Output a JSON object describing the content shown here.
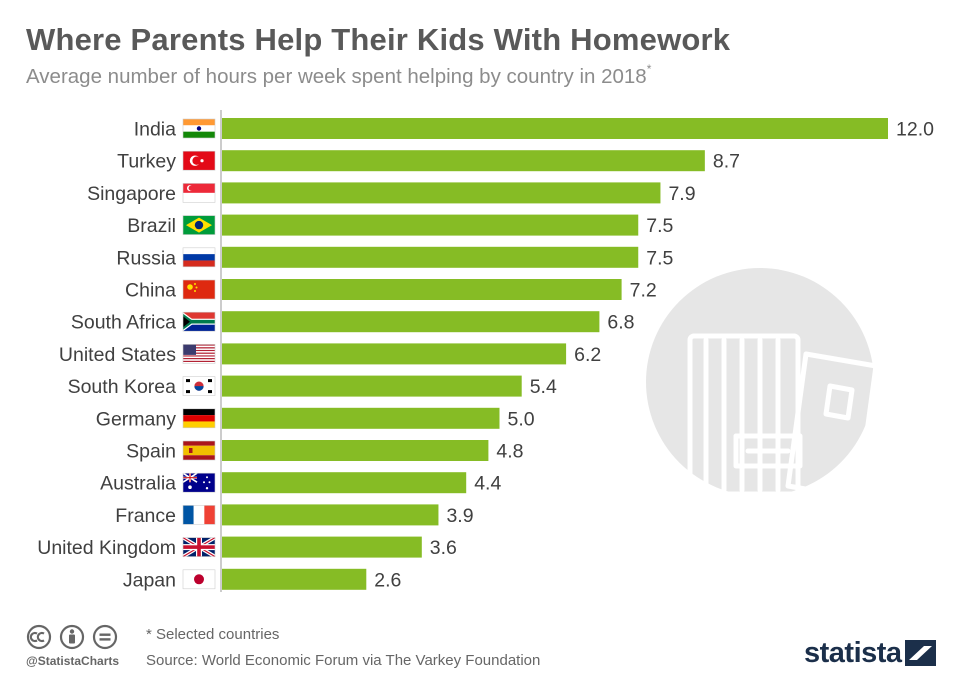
{
  "title": "Where Parents Help Their Kids With Homework",
  "subtitle": "Average number of hours per week spent helping by country in 2018",
  "subtitle_marker": "*",
  "footnote": "* Selected countries",
  "source": "Source: World Economic Forum via The Varkey Foundation",
  "handle": "@StatistaCharts",
  "brand": "statista",
  "colors": {
    "bar": "#86bc25",
    "text": "#404040",
    "title": "#595959",
    "brand": "#1b2f4a",
    "background_circle": "#e6e6e6"
  },
  "icons": [
    "creative-commons-icon",
    "attribution-icon",
    "no-derivatives-icon",
    "homework-books-icon",
    "statista-logo-icon"
  ],
  "chart_data": {
    "type": "bar",
    "orientation": "horizontal",
    "categories": [
      "India",
      "Turkey",
      "Singapore",
      "Brazil",
      "Russia",
      "China",
      "South Africa",
      "United States",
      "South Korea",
      "Germany",
      "Spain",
      "Australia",
      "France",
      "United Kingdom",
      "Japan"
    ],
    "values": [
      12.0,
      8.7,
      7.9,
      7.5,
      7.5,
      7.2,
      6.8,
      6.2,
      5.4,
      5.0,
      4.8,
      4.4,
      3.9,
      3.6,
      2.6
    ],
    "value_labels": [
      "12.0",
      "8.7",
      "7.9",
      "7.5",
      "7.5",
      "7.2",
      "6.8",
      "6.2",
      "5.4",
      "5.0",
      "4.8",
      "4.4",
      "3.9",
      "3.6",
      "2.6"
    ],
    "flags": [
      "flag-india-icon",
      "flag-turkey-icon",
      "flag-singapore-icon",
      "flag-brazil-icon",
      "flag-russia-icon",
      "flag-china-icon",
      "flag-south-africa-icon",
      "flag-united-states-icon",
      "flag-south-korea-icon",
      "flag-germany-icon",
      "flag-spain-icon",
      "flag-australia-icon",
      "flag-france-icon",
      "flag-united-kingdom-icon",
      "flag-japan-icon"
    ],
    "xlim": [
      0,
      12
    ],
    "grid": false,
    "legend": "none",
    "xlabel": "",
    "ylabel": ""
  }
}
